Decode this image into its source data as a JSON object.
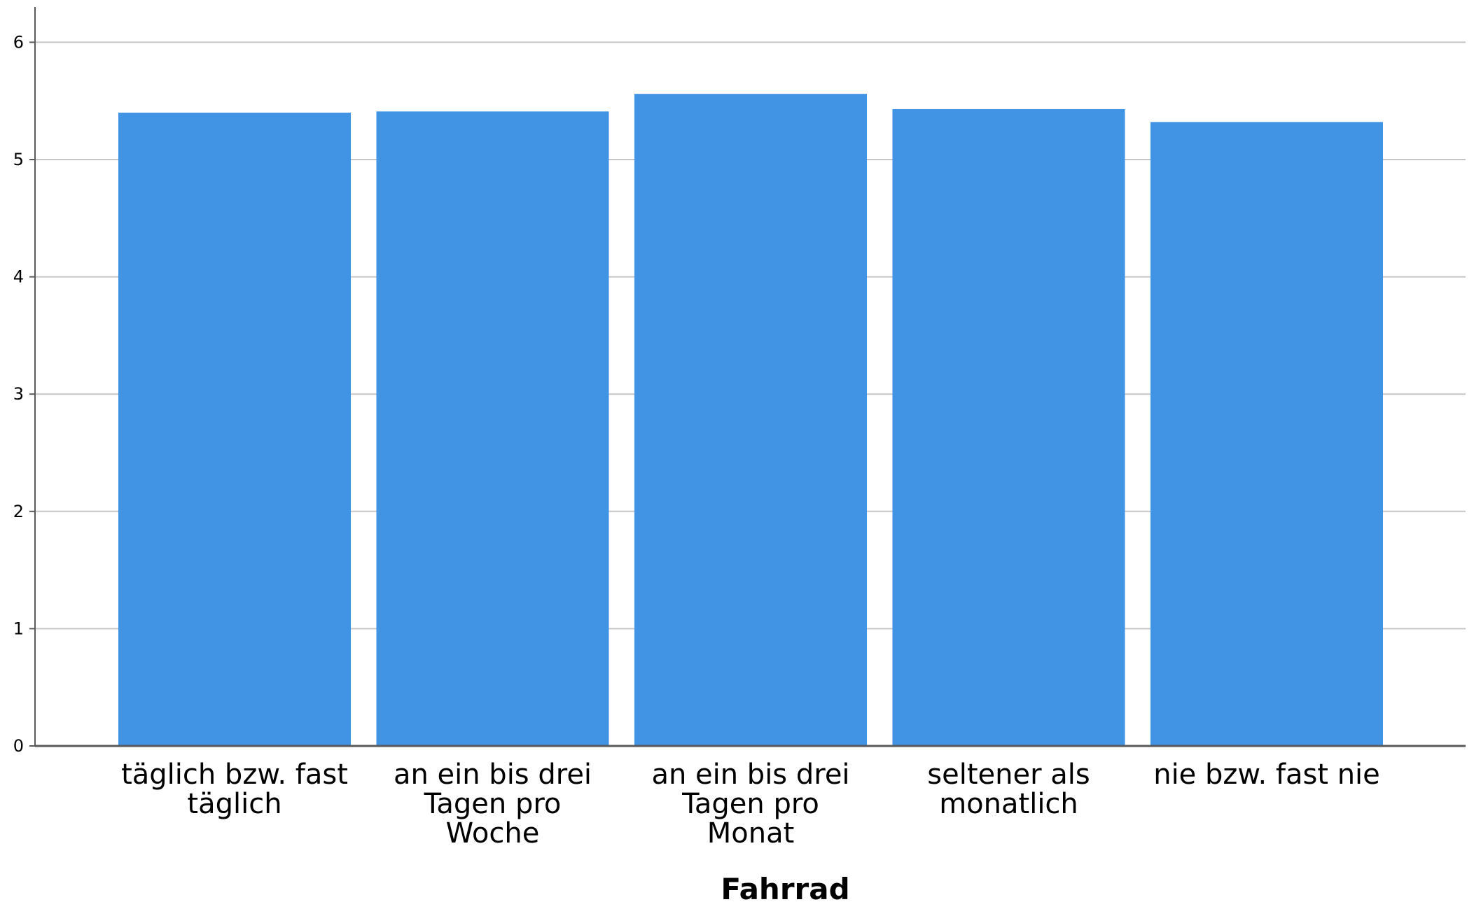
{
  "chart_data": {
    "type": "bar",
    "categories": [
      [
        "täglich bzw. fast",
        "täglich"
      ],
      [
        "an ein bis drei",
        "Tagen pro",
        "Woche"
      ],
      [
        "an ein bis drei",
        "Tagen pro",
        "Monat"
      ],
      [
        "seltener als",
        "monatlich"
      ],
      [
        "nie bzw. fast nie"
      ]
    ],
    "values": [
      5.4,
      5.41,
      5.56,
      5.43,
      5.32
    ],
    "title": "",
    "xlabel": "Fahrrad",
    "ylabel": "",
    "ylim": [
      0,
      6
    ],
    "yticks": [
      "0",
      "1",
      "2",
      "3",
      "4",
      "5",
      "6"
    ],
    "grid": true,
    "legend": "none",
    "colors": {
      "bar": "#4193e4",
      "grid": "#c6c6c6",
      "axis": "#595959",
      "text": "#000000"
    }
  }
}
